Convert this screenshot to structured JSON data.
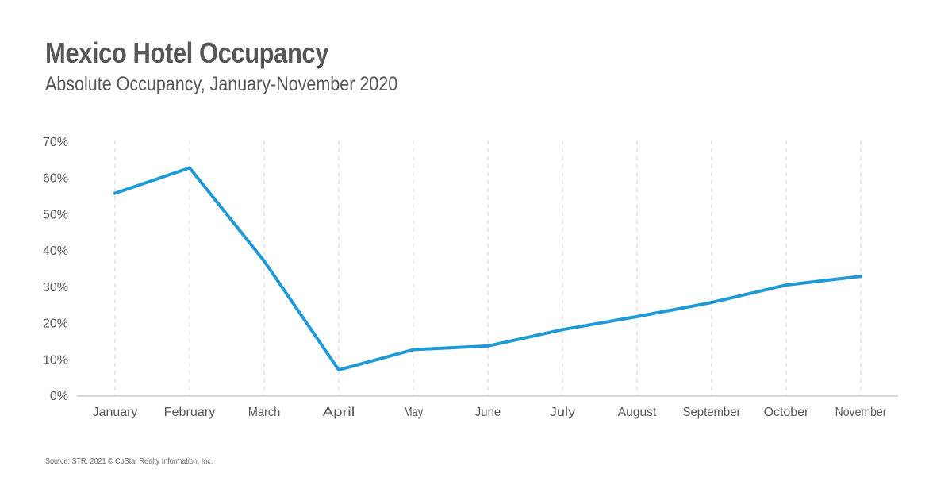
{
  "title": "Mexico Hotel Occupancy",
  "subtitle": "Absolute Occupancy, January-November 2020",
  "source": "Source: STR. 2021 © CoStar Realty Information, Inc.",
  "colors": {
    "line": "#1f9ad6",
    "text": "#555759",
    "grid": "#d0d0d0",
    "axis": "#cccccc"
  },
  "chart_data": {
    "type": "line",
    "title": "Mexico Hotel Occupancy",
    "subtitle": "Absolute Occupancy, January-November 2020",
    "categories": [
      "January",
      "February",
      "March",
      "April",
      "May",
      "June",
      "July",
      "August",
      "September",
      "October",
      "November"
    ],
    "series": [
      {
        "values": [
          55.9,
          62.9,
          37.2,
          7.2,
          12.8,
          13.8,
          18.3,
          21.9,
          25.8,
          30.6,
          33.0
        ]
      }
    ],
    "y_ticks": [
      "0%",
      "10%",
      "20%",
      "30%",
      "40%",
      "50%",
      "60%",
      "70%"
    ],
    "ylim": [
      0,
      70
    ],
    "grid": "vertical dashed lines at each category",
    "legend": "none"
  }
}
